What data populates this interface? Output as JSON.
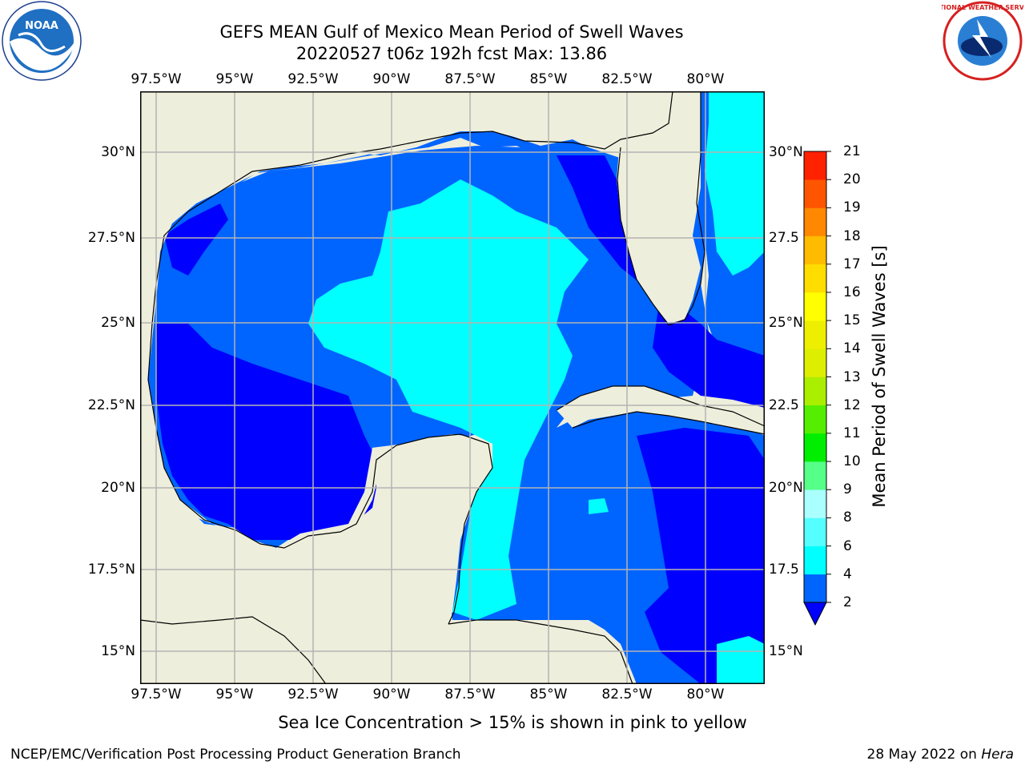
{
  "title": {
    "line1": "GEFS MEAN Gulf of Mexico Mean Period of Swell Waves",
    "line2": "20220527 t06z 192h fcst   Max: 13.86"
  },
  "map": {
    "lon_labels": [
      "97.5°W",
      "95°W",
      "92.5°W",
      "90°W",
      "87.5°W",
      "85°W",
      "82.5°W",
      "80°W"
    ],
    "lat_labels": [
      "30°N",
      "27.5°N",
      "25°N",
      "22.5°N",
      "20°N",
      "17.5°N",
      "15°N"
    ],
    "lat_labels_right": [
      "30°N",
      "27.5",
      "25°N",
      "22.5",
      "20°N",
      "17.5",
      "15°N"
    ],
    "colors": {
      "land": "#eeeedc",
      "level_2_4": "#0064ff",
      "level_4_6": "#00ffff",
      "below_2": "#0000ff",
      "green": "#33dd00",
      "yellowgreen": "#99ee00",
      "coast": "#000000",
      "grid": "#b4b4b4"
    }
  },
  "colorbar": {
    "title": "Mean Period of Swell Waves [s]",
    "ticks": [
      "2",
      "4",
      "6",
      "8",
      "9",
      "10",
      "11",
      "12",
      "13",
      "14",
      "15",
      "16",
      "17",
      "18",
      "19",
      "20",
      "21"
    ],
    "colors": [
      "#0064ff",
      "#00ffff",
      "#55ffff",
      "#aaffff",
      "#55ff88",
      "#00ee00",
      "#55ee00",
      "#aaee00",
      "#ddee00",
      "#eeee00",
      "#ffff00",
      "#ffdd00",
      "#ffbb00",
      "#ff8800",
      "#ff5500",
      "#ff2200"
    ],
    "extend_color": "#0000ff"
  },
  "note": "Sea Ice Concentration > 15% is shown in pink to yellow",
  "footer": {
    "left": "NCEP/EMC/Verification Post Processing Product Generation Branch",
    "date": "28 May 2022 on ",
    "host": "Hera"
  },
  "logos": {
    "noaa_text": "NOAA",
    "nws_text": "NATIONAL WEATHER SERVICE"
  }
}
